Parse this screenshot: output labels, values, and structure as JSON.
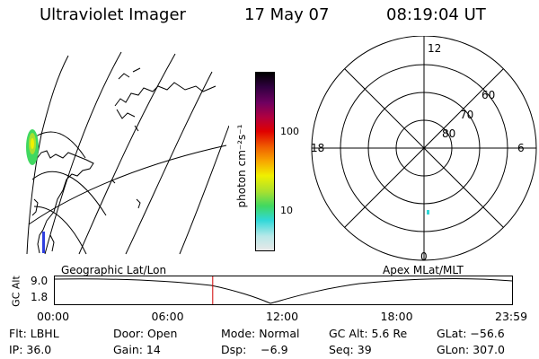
{
  "header": {
    "instrument": "Ultraviolet Imager",
    "date": "17 May 07",
    "time": "08:19:04 UT"
  },
  "colorbar": {
    "unit_label": "photon cm⁻²s⁻¹",
    "tick_100": "100",
    "tick_10": "10",
    "colors": [
      "#e8e8e8",
      "#b8e8e8",
      "#30d8d8",
      "#40d860",
      "#a8e030",
      "#f0f000",
      "#f8a800",
      "#f06000",
      "#e00000",
      "#b00040",
      "#700060",
      "#300040",
      "#000000"
    ]
  },
  "polar_plot": {
    "mlt_top": "12",
    "mlt_left": "18",
    "mlt_right": "6",
    "mlt_bottom": "0",
    "lat_60": "60",
    "lat_70": "70",
    "lat_80": "80"
  },
  "timeline": {
    "left_label": "Geographic Lat/Lon",
    "right_label": "Apex MLat/MLT",
    "y_axis_label": "GC Alt",
    "y_max": "9.0",
    "y_min": "1.8",
    "x_ticks": [
      "00:00",
      "06:00",
      "12:00",
      "18:00",
      "23:59"
    ],
    "marker_time_hours": 8.32
  },
  "info": {
    "filter": "Flt: LBHL",
    "door": "Door: Open",
    "mode": "Mode: Normal",
    "gc_alt": "GC Alt: 5.6 Re",
    "glat": "GLat: −56.6",
    "ip": "IP: 36.0",
    "gain": "Gain: 14",
    "dsp": "Dsp:    −6.9",
    "seq": "Seq: 39",
    "glon": "GLon: 307.0"
  }
}
